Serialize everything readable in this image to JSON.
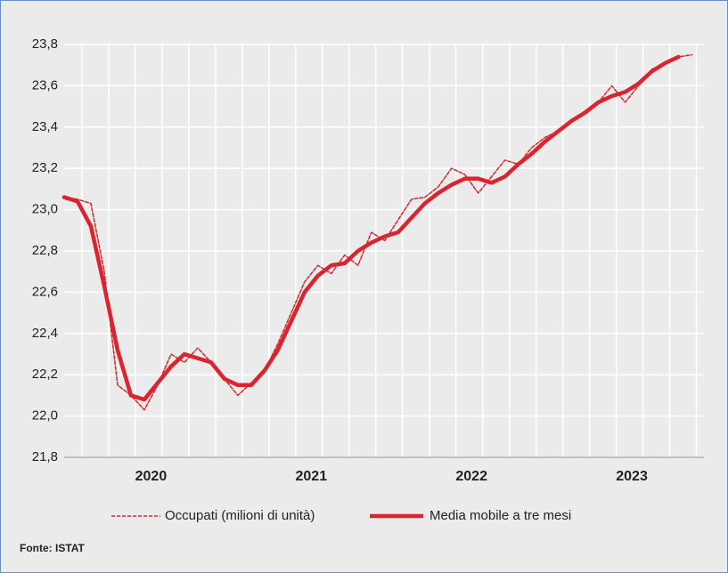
{
  "chart_data": {
    "type": "line",
    "x": [
      0,
      1,
      2,
      3,
      4,
      5,
      6,
      7,
      8,
      9,
      10,
      11,
      12,
      13,
      14,
      15,
      16,
      17,
      18,
      19,
      20,
      21,
      22,
      23,
      24,
      25,
      26,
      27,
      28,
      29,
      30,
      31,
      32,
      33,
      34,
      35,
      36,
      37,
      38,
      39,
      40,
      41,
      42,
      43,
      44,
      45,
      46,
      47
    ],
    "xlim": [
      0,
      47.9
    ],
    "xticks": [
      {
        "value": 6.5,
        "label": "2020"
      },
      {
        "value": 18.5,
        "label": "2021"
      },
      {
        "value": 30.5,
        "label": "2022"
      },
      {
        "value": 42.5,
        "label": "2023"
      }
    ],
    "ylim": [
      21.8,
      23.8
    ],
    "yticks": [
      {
        "value": 21.8,
        "label": "21,8"
      },
      {
        "value": 22.0,
        "label": "22,0"
      },
      {
        "value": 22.2,
        "label": "22,2"
      },
      {
        "value": 22.4,
        "label": "22,4"
      },
      {
        "value": 22.6,
        "label": "22,6"
      },
      {
        "value": 22.8,
        "label": "22,8"
      },
      {
        "value": 23.0,
        "label": "23,0"
      },
      {
        "value": 23.2,
        "label": "23,2"
      },
      {
        "value": 23.4,
        "label": "23,4"
      },
      {
        "value": 23.6,
        "label": "23,6"
      },
      {
        "value": 23.8,
        "label": "23,8"
      }
    ],
    "grid": true,
    "series": [
      {
        "name": "Occupati (milioni di unità)",
        "color": "#d9252f",
        "dashed": true,
        "values": [
          23.06,
          23.05,
          23.03,
          22.7,
          22.15,
          22.1,
          22.03,
          22.15,
          22.3,
          22.26,
          22.33,
          22.26,
          22.18,
          22.1,
          22.16,
          22.22,
          22.35,
          22.5,
          22.65,
          22.73,
          22.69,
          22.78,
          22.73,
          22.89,
          22.85,
          22.95,
          23.05,
          23.06,
          23.11,
          23.2,
          23.17,
          23.08,
          23.16,
          23.24,
          23.22,
          23.3,
          23.35,
          23.38,
          23.43,
          23.47,
          23.52,
          23.6,
          23.52,
          23.6,
          23.68,
          23.71,
          23.74,
          23.75
        ]
      },
      {
        "name": "Media mobile a tre mesi",
        "color": "#d9252f",
        "dashed": false,
        "values": [
          23.06,
          23.04,
          22.92,
          22.63,
          22.32,
          22.1,
          22.08,
          22.16,
          22.24,
          22.3,
          22.28,
          22.26,
          22.18,
          22.15,
          22.15,
          22.22,
          22.32,
          22.46,
          22.6,
          22.68,
          22.73,
          22.74,
          22.8,
          22.84,
          22.87,
          22.89,
          22.96,
          23.03,
          23.08,
          23.12,
          23.15,
          23.15,
          23.13,
          23.16,
          23.22,
          23.27,
          23.33,
          23.38,
          23.43,
          23.47,
          23.52,
          23.55,
          23.57,
          23.61,
          23.67,
          23.71,
          23.74,
          null
        ]
      }
    ],
    "source": "Fonte: ISTAT"
  }
}
